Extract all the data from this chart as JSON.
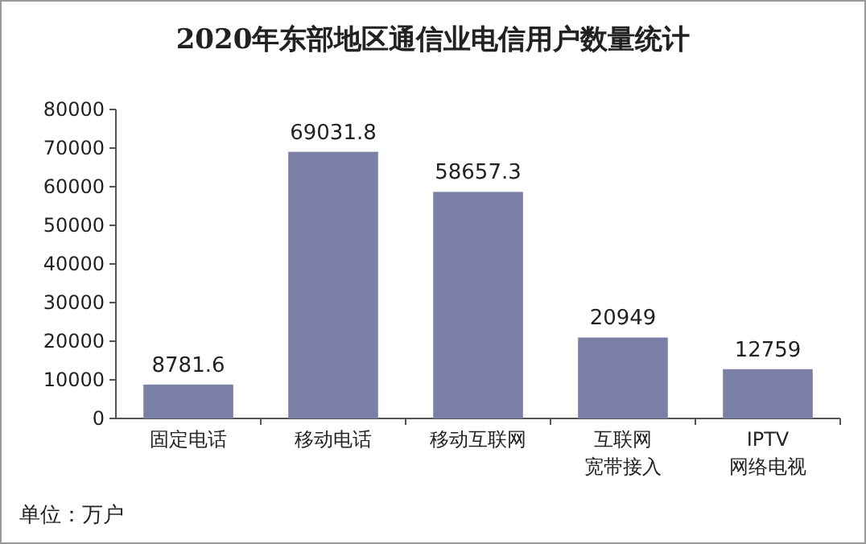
{
  "chart_data": {
    "type": "bar",
    "title": "2020年东部地区通信业电信用户数量统计",
    "categories": [
      "固定电话",
      "移动电话",
      "移动互联网",
      "互联网宽带接入",
      "IPTV网络电视"
    ],
    "values": [
      8781.6,
      69031.8,
      58657.3,
      20949,
      12759
    ],
    "color": "#7a80a6",
    "ylim": [
      0,
      80000
    ],
    "yticks": [
      0,
      10000,
      20000,
      30000,
      40000,
      50000,
      60000,
      70000,
      80000
    ],
    "grid": false,
    "data_labels": true,
    "annotations": [
      "单位：万户"
    ]
  }
}
